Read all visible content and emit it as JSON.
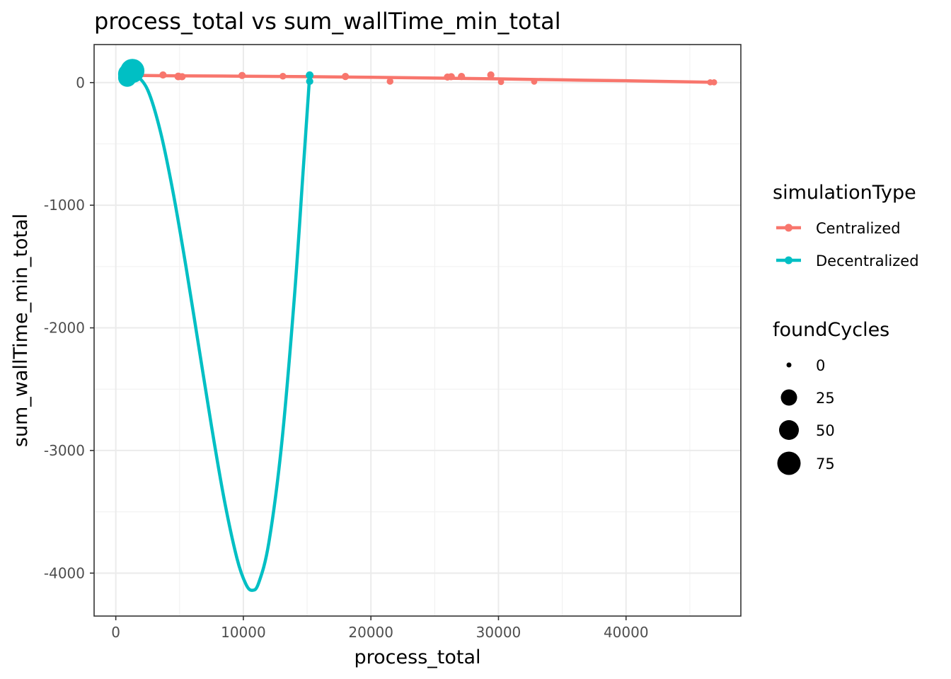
{
  "chart_data": {
    "type": "scatter",
    "title": "process_total  vs  sum_wallTime_min_total",
    "xlabel": "process_total",
    "ylabel": "sum_wallTime_min_total",
    "xlim": [
      -1700,
      49000
    ],
    "ylim": [
      -4350,
      310
    ],
    "x_ticks": [
      0,
      10000,
      20000,
      30000,
      40000
    ],
    "x_tick_labels": [
      "0",
      "10000",
      "20000",
      "30000",
      "40000"
    ],
    "y_ticks": [
      0,
      -1000,
      -2000,
      -3000,
      -4000
    ],
    "y_tick_labels": [
      "0",
      "-1000",
      "-2000",
      "-3000",
      "-4000"
    ],
    "grid": true,
    "legend_position": "right",
    "colors": {
      "Centralized": "#F8766D",
      "Decentralized": "#00BFC4"
    },
    "legends": [
      {
        "title": "simulationType",
        "entries": [
          "Centralized",
          "Decentralized"
        ]
      },
      {
        "title": "foundCycles",
        "entries": [
          "0",
          "25",
          "50",
          "75"
        ],
        "values": [
          0,
          25,
          50,
          75
        ]
      }
    ],
    "series": [
      {
        "name": "Centralized",
        "points": [
          {
            "x": 500,
            "y": 60,
            "size": 3
          },
          {
            "x": 1500,
            "y": 55,
            "size": 4
          },
          {
            "x": 3700,
            "y": 62,
            "size": 4
          },
          {
            "x": 4900,
            "y": 50,
            "size": 5
          },
          {
            "x": 5200,
            "y": 48,
            "size": 4
          },
          {
            "x": 9900,
            "y": 58,
            "size": 4
          },
          {
            "x": 13100,
            "y": 52,
            "size": 3
          },
          {
            "x": 18000,
            "y": 50,
            "size": 4
          },
          {
            "x": 21500,
            "y": 10,
            "size": 3
          },
          {
            "x": 26000,
            "y": 45,
            "size": 4
          },
          {
            "x": 26300,
            "y": 48,
            "size": 4
          },
          {
            "x": 27100,
            "y": 50,
            "size": 4
          },
          {
            "x": 29400,
            "y": 62,
            "size": 4
          },
          {
            "x": 30200,
            "y": 5,
            "size": 2
          },
          {
            "x": 32800,
            "y": 8,
            "size": 2
          },
          {
            "x": 46600,
            "y": 2,
            "size": 2
          },
          {
            "x": 46900,
            "y": 2,
            "size": 2
          }
        ],
        "smooth": [
          [
            500,
            60
          ],
          [
            5000,
            55
          ],
          [
            10000,
            52
          ],
          [
            15000,
            48
          ],
          [
            20000,
            43
          ],
          [
            25000,
            37
          ],
          [
            30000,
            30
          ],
          [
            35000,
            22
          ],
          [
            40000,
            15
          ],
          [
            46900,
            2
          ]
        ]
      },
      {
        "name": "Decentralized",
        "points": [
          {
            "x": 900,
            "y": 40,
            "size": 45
          },
          {
            "x": 1000,
            "y": 70,
            "size": 60
          },
          {
            "x": 1300,
            "y": 95,
            "size": 80
          },
          {
            "x": 15200,
            "y": 60,
            "size": 5
          },
          {
            "x": 15200,
            "y": 10,
            "size": 4
          }
        ],
        "smooth": [
          [
            900,
            60
          ],
          [
            1500,
            65
          ],
          [
            2500,
            -60
          ],
          [
            3500,
            -400
          ],
          [
            4500,
            -900
          ],
          [
            5500,
            -1500
          ],
          [
            6500,
            -2150
          ],
          [
            7500,
            -2800
          ],
          [
            8500,
            -3400
          ],
          [
            9500,
            -3880
          ],
          [
            10200,
            -4090
          ],
          [
            10700,
            -4140
          ],
          [
            11200,
            -4080
          ],
          [
            12000,
            -3750
          ],
          [
            13000,
            -2950
          ],
          [
            14000,
            -1750
          ],
          [
            14700,
            -700
          ],
          [
            15200,
            60
          ]
        ]
      }
    ]
  }
}
